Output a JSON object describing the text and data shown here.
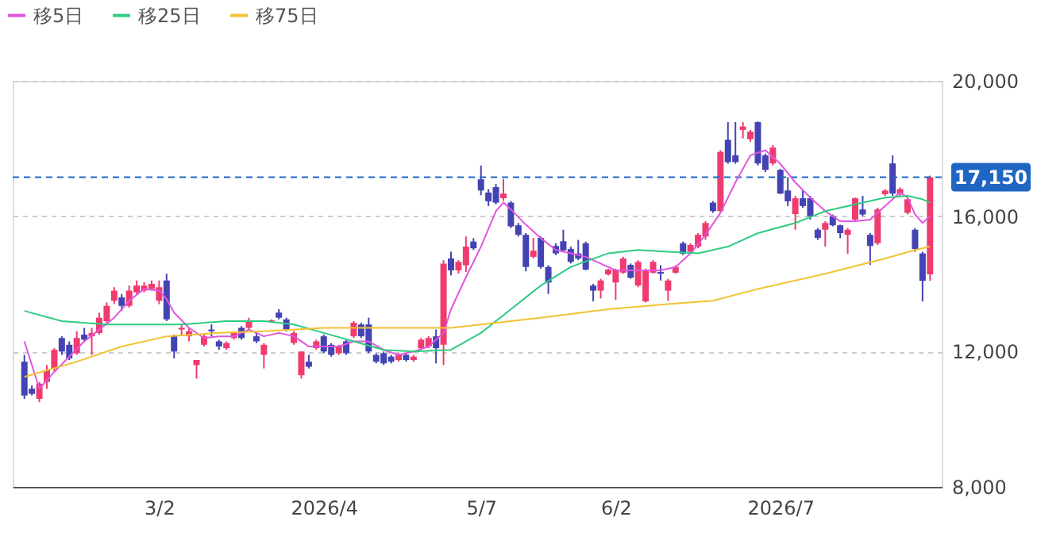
{
  "chart_data": {
    "type": "candlestick",
    "categories": [
      null,
      null,
      null,
      null,
      null,
      null,
      null,
      null,
      null,
      null,
      null,
      null,
      null,
      null,
      null,
      null,
      null,
      null,
      "3/2",
      null,
      null,
      null,
      null,
      null,
      null,
      null,
      null,
      null,
      null,
      null,
      null,
      null,
      null,
      null,
      null,
      null,
      null,
      null,
      null,
      null,
      "2026/4",
      null,
      null,
      null,
      null,
      null,
      null,
      null,
      null,
      null,
      null,
      null,
      null,
      null,
      null,
      null,
      null,
      null,
      null,
      null,
      null,
      "5/7",
      null,
      null,
      null,
      null,
      null,
      null,
      null,
      null,
      null,
      null,
      null,
      null,
      null,
      null,
      null,
      null,
      null,
      "6/2",
      null,
      null,
      null,
      null,
      null,
      null,
      null,
      null,
      null,
      null,
      null,
      null,
      null,
      null,
      null,
      null,
      null,
      null,
      null,
      null,
      null,
      "2026/7",
      null,
      null,
      null,
      null,
      null,
      null,
      null,
      null,
      null,
      null,
      null,
      null,
      null,
      null,
      null,
      null,
      null,
      null,
      null,
      null
    ],
    "ohlc": [
      [
        11700,
        11900,
        10600,
        10700
      ],
      [
        10900,
        11000,
        10700,
        10750
      ],
      [
        10600,
        11100,
        10500,
        11050
      ],
      [
        11100,
        11600,
        10900,
        11450
      ],
      [
        11500,
        12100,
        11400,
        12050
      ],
      [
        12400,
        12450,
        11900,
        12000
      ],
      [
        12200,
        12300,
        11750,
        11800
      ],
      [
        11950,
        12600,
        11900,
        12400
      ],
      [
        12500,
        12700,
        12300,
        12350
      ],
      [
        12450,
        12700,
        11900,
        12550
      ],
      [
        12550,
        13150,
        12500,
        13000
      ],
      [
        12900,
        13450,
        12800,
        13350
      ],
      [
        13500,
        13900,
        13400,
        13800
      ],
      [
        13600,
        13700,
        13200,
        13350
      ],
      [
        13350,
        13950,
        13300,
        13800
      ],
      [
        13750,
        14100,
        13700,
        13950
      ],
      [
        13800,
        14050,
        13750,
        13950
      ],
      [
        13850,
        14100,
        13800,
        14000
      ],
      [
        13500,
        14100,
        13400,
        13900
      ],
      [
        14100,
        14300,
        12900,
        12950
      ],
      [
        12450,
        12500,
        11800,
        12000
      ],
      [
        12650,
        12800,
        12500,
        12700
      ],
      [
        12450,
        12700,
        12300,
        12600
      ],
      [
        11600,
        11750,
        11200,
        11750
      ],
      [
        12200,
        12500,
        12150,
        12450
      ],
      [
        12650,
        12800,
        12450,
        12600
      ],
      [
        12300,
        12350,
        12050,
        12150
      ],
      [
        12100,
        12300,
        12050,
        12250
      ],
      [
        12400,
        12600,
        12350,
        12550
      ],
      [
        12700,
        12750,
        12350,
        12400
      ],
      [
        12700,
        13000,
        12650,
        12900
      ],
      [
        12450,
        12550,
        12250,
        12300
      ],
      [
        11900,
        12250,
        11500,
        12200
      ],
      [
        12880,
        12950,
        12850,
        12920
      ],
      [
        13150,
        13250,
        12950,
        13000
      ],
      [
        12950,
        13000,
        12600,
        12650
      ],
      [
        12250,
        12600,
        12200,
        12550
      ],
      [
        11300,
        12000,
        11200,
        12000
      ],
      [
        11700,
        11900,
        11500,
        11550
      ],
      [
        12100,
        12350,
        12050,
        12300
      ],
      [
        12450,
        12500,
        11950,
        12000
      ],
      [
        12200,
        12250,
        11850,
        11900
      ],
      [
        11950,
        12200,
        11900,
        12150
      ],
      [
        12300,
        12350,
        11900,
        11950
      ],
      [
        12450,
        12900,
        12400,
        12850
      ],
      [
        12800,
        12850,
        12400,
        12450
      ],
      [
        12800,
        13000,
        11950,
        12000
      ],
      [
        11900,
        11950,
        11650,
        11700
      ],
      [
        11950,
        12000,
        11600,
        11650
      ],
      [
        11850,
        11900,
        11650,
        11700
      ],
      [
        11750,
        11950,
        11700,
        11900
      ],
      [
        11900,
        11950,
        11700,
        11750
      ],
      [
        11750,
        11900,
        11700,
        11850
      ],
      [
        12100,
        12400,
        12050,
        12350
      ],
      [
        12150,
        12450,
        12100,
        12400
      ],
      [
        12450,
        12650,
        11650,
        12100
      ],
      [
        12200,
        14700,
        11600,
        14600
      ],
      [
        14750,
        14950,
        14250,
        14400
      ],
      [
        14400,
        14700,
        14300,
        14650
      ],
      [
        14550,
        15400,
        14350,
        15100
      ],
      [
        15250,
        15350,
        15000,
        15050
      ],
      [
        17090,
        17500,
        16620,
        16760
      ],
      [
        16700,
        16800,
        16300,
        16440
      ],
      [
        16860,
        16950,
        16350,
        16400
      ],
      [
        16530,
        17100,
        16450,
        16670
      ],
      [
        16400,
        16450,
        15650,
        15700
      ],
      [
        15730,
        15800,
        15400,
        15450
      ],
      [
        15450,
        15500,
        14370,
        14500
      ],
      [
        14800,
        15360,
        14750,
        14980
      ],
      [
        15360,
        15400,
        14450,
        14500
      ],
      [
        14500,
        14550,
        13700,
        14040
      ],
      [
        15120,
        15200,
        14850,
        14900
      ],
      [
        15260,
        15600,
        14950,
        14990
      ],
      [
        15030,
        15100,
        14600,
        14650
      ],
      [
        14900,
        15300,
        14700,
        14750
      ],
      [
        15200,
        15250,
        14400,
        14420
      ],
      [
        13950,
        14000,
        13480,
        13800
      ],
      [
        13800,
        14150,
        13570,
        14100
      ],
      [
        14280,
        14450,
        14250,
        14420
      ],
      [
        14040,
        14450,
        13530,
        14420
      ],
      [
        14330,
        14800,
        14300,
        14750
      ],
      [
        14560,
        14600,
        14150,
        14180
      ],
      [
        13950,
        14700,
        13900,
        14650
      ],
      [
        13480,
        14450,
        13450,
        14420
      ],
      [
        14330,
        14700,
        14300,
        14650
      ],
      [
        14350,
        14550,
        14100,
        14300
      ],
      [
        13800,
        14150,
        13500,
        14100
      ],
      [
        14330,
        14550,
        14300,
        14500
      ],
      [
        15200,
        15250,
        14850,
        14890
      ],
      [
        14950,
        15200,
        14900,
        15150
      ],
      [
        15100,
        15500,
        15050,
        15450
      ],
      [
        15400,
        15850,
        15300,
        15800
      ],
      [
        16400,
        16450,
        16100,
        16150
      ],
      [
        16150,
        17950,
        16100,
        17900
      ],
      [
        18260,
        18780,
        17550,
        17600
      ],
      [
        17800,
        18780,
        17550,
        17600
      ],
      [
        18550,
        18780,
        18300,
        18650
      ],
      [
        18280,
        18550,
        18200,
        18500
      ],
      [
        18780,
        18800,
        17500,
        17560
      ],
      [
        17800,
        17850,
        17300,
        17370
      ],
      [
        17560,
        18100,
        17500,
        18030
      ],
      [
        17370,
        17400,
        16650,
        16670
      ],
      [
        16760,
        17150,
        16300,
        16440
      ],
      [
        16060,
        16600,
        15600,
        16530
      ],
      [
        16530,
        16760,
        16250,
        16300
      ],
      [
        16530,
        16600,
        15900,
        16000
      ],
      [
        15600,
        15650,
        15300,
        15360
      ],
      [
        15600,
        15850,
        15100,
        15800
      ],
      [
        16000,
        16050,
        15700,
        15730
      ],
      [
        15730,
        15750,
        15350,
        15500
      ],
      [
        15450,
        15650,
        14890,
        15600
      ],
      [
        15900,
        16550,
        15850,
        16530
      ],
      [
        16200,
        16600,
        16000,
        16050
      ],
      [
        15450,
        15500,
        14560,
        15120
      ],
      [
        15200,
        16250,
        15150,
        16200
      ],
      [
        16650,
        16800,
        16600,
        16760
      ],
      [
        17560,
        17800,
        16600,
        16670
      ],
      [
        16650,
        16850,
        16600,
        16800
      ],
      [
        16100,
        16550,
        16050,
        16500
      ],
      [
        15600,
        15650,
        14950,
        15030
      ],
      [
        14900,
        14950,
        13480,
        14090
      ],
      [
        14280,
        17200,
        14090,
        17150
      ]
    ],
    "colors": [
      "#4343b4",
      "#4343b4",
      "#ef3b6e",
      "#ef3b6e",
      "#ef3b6e",
      "#4343b4",
      "#4343b4",
      "#ef3b6e",
      "#4343b4",
      "#ef3b6e",
      "#ef3b6e",
      "#ef3b6e",
      "#ef3b6e",
      "#4343b4",
      "#ef3b6e",
      "#ef3b6e",
      "#ef3b6e",
      "#ef3b6e",
      "#ef3b6e",
      "#4343b4",
      "#4343b4",
      "#ef3b6e",
      "#ef3b6e",
      "#ef3b6e",
      "#ef3b6e",
      "#4343b4",
      "#4343b4",
      "#ef3b6e",
      "#ef3b6e",
      "#4343b4",
      "#ef3b6e",
      "#4343b4",
      "#ef3b6e",
      "#ef3b6e",
      "#4343b4",
      "#4343b4",
      "#ef3b6e",
      "#ef3b6e",
      "#4343b4",
      "#ef3b6e",
      "#4343b4",
      "#4343b4",
      "#ef3b6e",
      "#4343b4",
      "#ef3b6e",
      "#4343b4",
      "#4343b4",
      "#4343b4",
      "#4343b4",
      "#4343b4",
      "#ef3b6e",
      "#4343b4",
      "#ef3b6e",
      "#ef3b6e",
      "#ef3b6e",
      "#4343b4",
      "#ef3b6e",
      "#4343b4",
      "#ef3b6e",
      "#ef3b6e",
      "#4343b4",
      "#4343b4",
      "#4343b4",
      "#4343b4",
      "#ef3b6e",
      "#4343b4",
      "#4343b4",
      "#4343b4",
      "#ef3b6e",
      "#4343b4",
      "#4343b4",
      "#4343b4",
      "#4343b4",
      "#4343b4",
      "#4343b4",
      "#4343b4",
      "#4343b4",
      "#ef3b6e",
      "#ef3b6e",
      "#ef3b6e",
      "#ef3b6e",
      "#4343b4",
      "#ef3b6e",
      "#ef3b6e",
      "#ef3b6e",
      "#4343b4",
      "#ef3b6e",
      "#ef3b6e",
      "#4343b4",
      "#ef3b6e",
      "#ef3b6e",
      "#ef3b6e",
      "#4343b4",
      "#ef3b6e",
      "#4343b4",
      "#4343b4",
      "#ef3b6e",
      "#ef3b6e",
      "#4343b4",
      "#4343b4",
      "#ef3b6e",
      "#4343b4",
      "#4343b4",
      "#ef3b6e",
      "#4343b4",
      "#4343b4",
      "#4343b4",
      "#ef3b6e",
      "#4343b4",
      "#4343b4",
      "#ef3b6e",
      "#ef3b6e",
      "#4343b4",
      "#4343b4",
      "#ef3b6e",
      "#ef3b6e",
      "#4343b4",
      "#ef3b6e",
      "#ef3b6e",
      "#4343b4",
      "#4343b4",
      "#ef3b6e"
    ],
    "series": [
      {
        "name": "移5日",
        "type": "line",
        "color": "#e055e0",
        "values": [
          12300,
          null,
          10900,
          null,
          11400,
          null,
          11850,
          null,
          12300,
          null,
          12650,
          null,
          13000,
          null,
          13500,
          null,
          13850,
          null,
          13800,
          13550,
          13150,
          null,
          12700,
          null,
          12400,
          null,
          12450,
          null,
          12450,
          null,
          12650,
          null,
          12450,
          null,
          12550,
          null,
          12450,
          null,
          12150,
          null,
          12150,
          null,
          12150,
          null,
          12300,
          null,
          12300,
          null,
          12050,
          null,
          11900,
          null,
          12000,
          null,
          12150,
          null,
          12550,
          13250,
          null,
          14200,
          null,
          15100,
          null,
          16150,
          16400,
          16200,
          null,
          15750,
          null,
          15350,
          null,
          15000,
          null,
          14900,
          null,
          14800,
          null,
          14600,
          null,
          14400,
          null,
          14400,
          null,
          14400,
          null,
          14400,
          null,
          14500,
          null,
          14900,
          null,
          15450,
          null,
          16100,
          null,
          17000,
          null,
          17800,
          null,
          17950,
          null,
          17550,
          null,
          17000,
          null,
          16550,
          null,
          16150,
          null,
          15850,
          null,
          15850,
          null,
          15900,
          null,
          16300,
          null,
          16700,
          16550,
          16050,
          15800,
          16000
        ]
      },
      {
        "name": "移25日",
        "type": "line",
        "color": "#2ecc80",
        "values": [
          13200,
          null,
          null,
          null,
          null,
          12900,
          null,
          null,
          null,
          null,
          null,
          12800,
          null,
          null,
          null,
          null,
          null,
          12800,
          null,
          null,
          null,
          12800,
          null,
          null,
          null,
          null,
          null,
          12900,
          null,
          null,
          null,
          null,
          12900,
          null,
          null,
          null,
          12800,
          null,
          null,
          null,
          12550,
          null,
          null,
          null,
          12300,
          null,
          null,
          null,
          12050,
          null,
          null,
          null,
          12000,
          null,
          null,
          null,
          null,
          12050,
          null,
          null,
          null,
          12550,
          null,
          null,
          null,
          13250,
          null,
          null,
          null,
          13950,
          null,
          null,
          null,
          14500,
          null,
          null,
          null,
          null,
          14900,
          null,
          null,
          null,
          15000,
          null,
          null,
          null,
          14950,
          null,
          null,
          null,
          14900,
          null,
          null,
          null,
          15100,
          null,
          null,
          null,
          15500,
          null,
          null,
          null,
          null,
          15800,
          null,
          null,
          null,
          16150,
          null,
          null,
          null,
          16350,
          null,
          null,
          null,
          16550,
          null,
          null,
          16600,
          null,
          16500,
          16400
        ]
      },
      {
        "name": "移75日",
        "type": "line",
        "color": "#f2c230",
        "values": [
          11250,
          null,
          null,
          null,
          null,
          null,
          null,
          11700,
          null,
          null,
          null,
          null,
          null,
          12150,
          null,
          null,
          null,
          null,
          null,
          12450,
          null,
          null,
          null,
          null,
          null,
          null,
          12550,
          null,
          null,
          null,
          null,
          null,
          12600,
          null,
          null,
          null,
          null,
          null,
          null,
          null,
          12700,
          null,
          null,
          null,
          null,
          null,
          null,
          null,
          12700,
          null,
          null,
          null,
          null,
          null,
          null,
          null,
          null,
          12700,
          null,
          null,
          null,
          12800,
          null,
          null,
          null,
          null,
          null,
          null,
          null,
          13000,
          null,
          null,
          null,
          null,
          null,
          null,
          null,
          null,
          13250,
          null,
          null,
          null,
          null,
          null,
          null,
          null,
          13400,
          null,
          null,
          null,
          null,
          null,
          13500,
          null,
          null,
          null,
          null,
          null,
          13850,
          null,
          null,
          null,
          null,
          null,
          null,
          null,
          null,
          14300,
          null,
          null,
          null,
          null,
          null,
          null,
          null,
          14750,
          null,
          null,
          null,
          15000,
          null,
          15100
        ]
      }
    ],
    "ylim": [
      8000,
      20000
    ],
    "yticks": [
      {
        "value": 8000,
        "label": "8,000"
      },
      {
        "value": 12000,
        "label": "12,000"
      },
      {
        "value": 16000,
        "label": "16,000"
      },
      {
        "value": 20000,
        "label": "20,000"
      }
    ],
    "grid": "y",
    "legend": "top left",
    "ref_lines": [
      {
        "axis": "y",
        "value": 17150,
        "label": "17,150",
        "color": "#1f66c2",
        "line_style": "dashed"
      }
    ]
  }
}
